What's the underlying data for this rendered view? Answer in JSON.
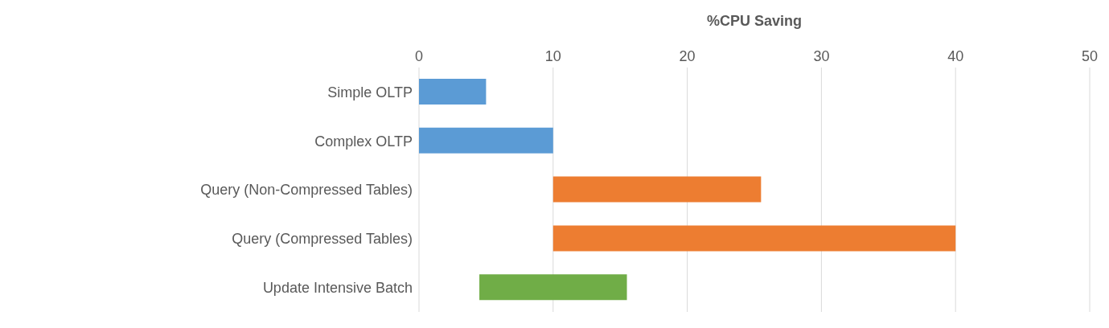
{
  "chart_data": {
    "type": "bar",
    "orientation": "horizontal",
    "title": "%CPU Saving",
    "categories": [
      "Simple OLTP",
      "Complex OLTP",
      "Query (Non-Compressed Tables)",
      "Query (Compressed Tables)",
      "Update Intensive Batch"
    ],
    "values": [
      5,
      10,
      15.5,
      30,
      11
    ],
    "base": [
      0,
      0,
      10,
      10,
      4.5
    ],
    "colors": [
      "#5b9bd5",
      "#5b9bd5",
      "#ed7d31",
      "#ed7d31",
      "#70ad47"
    ],
    "xlim": [
      0,
      50
    ],
    "xticks": [
      0,
      10,
      20,
      30,
      40,
      50
    ],
    "grid": "x"
  }
}
